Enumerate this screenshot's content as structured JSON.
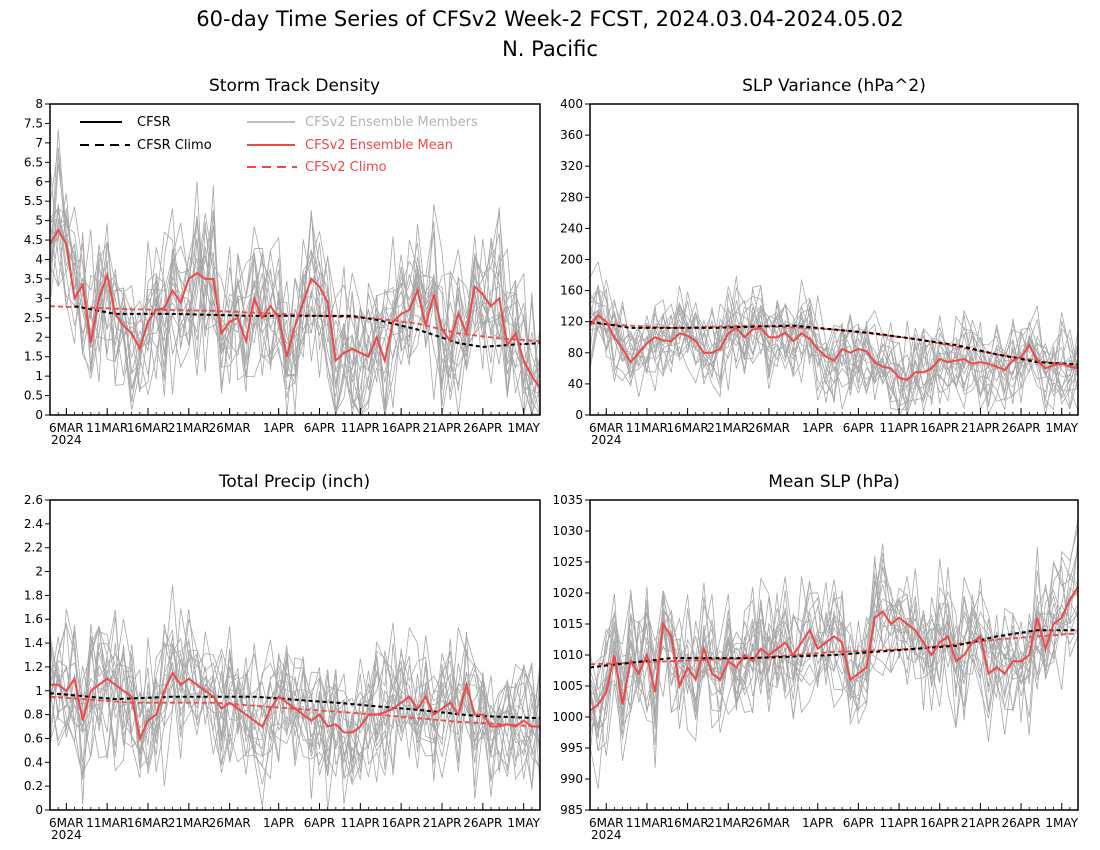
{
  "title": "60-day Time Series of CFSv2 Week-2 FCST, 2024.03.04-2024.05.02",
  "subtitle": "N. Pacific",
  "x_tick_labels": [
    "6MAR",
    "11MAR",
    "16MAR",
    "21MAR",
    "26MAR",
    "1APR",
    "6APR",
    "11APR",
    "16APR",
    "21APR",
    "26APR",
    "1MAY"
  ],
  "x_year_label": "2024",
  "legend": {
    "cfsr": "CFSR",
    "cfsr_climo": "CFSR Climo",
    "members": "CFSv2 Ensemble Members",
    "ens_mean": "CFSv2 Ensemble Mean",
    "cfsv2_climo": "CFSv2 Climo"
  },
  "colors": {
    "cfsr": "#000000",
    "members": "#a8a8a8",
    "ens_mean": "#f04848",
    "cfsv2_climo": "#f04848"
  },
  "chart_data": [
    {
      "type": "line",
      "title": "Storm Track Density",
      "x_range": [
        "2024-03-04",
        "2024-05-02"
      ],
      "ylim": [
        0,
        8
      ],
      "y_ticks": [
        "0",
        "0.5",
        "1",
        "1.5",
        "2",
        "2.5",
        "3",
        "3.5",
        "4",
        "4.5",
        "5",
        "5.5",
        "6",
        "6.5",
        "7",
        "7.5",
        "8"
      ],
      "ensemble_mean": [
        4.4,
        4.75,
        4.4,
        3.0,
        3.35,
        1.85,
        3.0,
        3.6,
        2.6,
        2.3,
        2.1,
        1.7,
        2.4,
        2.7,
        2.75,
        3.2,
        2.9,
        3.5,
        3.65,
        3.5,
        3.5,
        2.1,
        2.4,
        2.5,
        1.9,
        3.0,
        2.5,
        2.8,
        2.5,
        1.5,
        2.3,
        2.9,
        3.5,
        3.3,
        2.9,
        1.4,
        1.6,
        1.7,
        1.6,
        1.5,
        2.0,
        1.4,
        2.4,
        2.6,
        2.7,
        3.2,
        2.3,
        3.1,
        2.2,
        1.9,
        2.6,
        2.1,
        3.3,
        3.1,
        2.8,
        3.0,
        1.8,
        2.1,
        1.4,
        1.0,
        0.7
      ],
      "ensemble_mean_climo": [
        [
          0,
          2.8
        ],
        [
          10,
          2.72
        ],
        [
          20,
          2.68
        ],
        [
          30,
          2.58
        ],
        [
          40,
          2.48
        ],
        [
          45,
          2.35
        ],
        [
          50,
          2.1
        ],
        [
          55,
          1.97
        ],
        [
          60,
          1.9
        ]
      ],
      "cfsr_climo": [
        [
          3,
          2.8
        ],
        [
          8,
          2.6
        ],
        [
          15,
          2.6
        ],
        [
          25,
          2.55
        ],
        [
          30,
          2.55
        ],
        [
          37,
          2.55
        ],
        [
          40,
          2.45
        ],
        [
          45,
          2.2
        ],
        [
          50,
          1.85
        ],
        [
          53,
          1.75
        ],
        [
          56,
          1.8
        ],
        [
          60,
          1.85
        ]
      ],
      "member_spread": 1.0,
      "member_count": 18
    },
    {
      "type": "line",
      "title": "SLP Variance (hPa^2)",
      "x_range": [
        "2024-03-04",
        "2024-05-02"
      ],
      "ylim": [
        0,
        400
      ],
      "y_ticks": [
        "0",
        "40",
        "80",
        "120",
        "160",
        "200",
        "240",
        "280",
        "320",
        "360",
        "400"
      ],
      "ensemble_mean": [
        115,
        128,
        120,
        100,
        85,
        68,
        80,
        92,
        100,
        96,
        95,
        105,
        102,
        95,
        80,
        80,
        85,
        105,
        112,
        100,
        110,
        112,
        100,
        100,
        106,
        95,
        105,
        98,
        85,
        75,
        70,
        85,
        80,
        85,
        82,
        68,
        62,
        60,
        48,
        45,
        55,
        55,
        60,
        72,
        68,
        70,
        72,
        66,
        68,
        66,
        62,
        58,
        70,
        75,
        90,
        70,
        60,
        64,
        66,
        62,
        60
      ],
      "ensemble_mean_climo": [
        [
          0,
          118
        ],
        [
          10,
          112
        ],
        [
          20,
          115
        ],
        [
          30,
          110
        ],
        [
          40,
          98
        ],
        [
          50,
          78
        ],
        [
          60,
          62
        ]
      ],
      "cfsr_climo": [
        [
          0,
          120
        ],
        [
          5,
          112
        ],
        [
          15,
          112
        ],
        [
          25,
          115
        ],
        [
          35,
          105
        ],
        [
          45,
          90
        ],
        [
          50,
          78
        ],
        [
          55,
          68
        ],
        [
          60,
          65
        ]
      ],
      "member_spread": 28,
      "member_count": 18
    },
    {
      "type": "line",
      "title": "Total Precip (inch)",
      "x_range": [
        "2024-03-04",
        "2024-05-02"
      ],
      "ylim": [
        0,
        2.6
      ],
      "y_ticks": [
        "0",
        "0.2",
        "0.4",
        "0.6",
        "0.8",
        "1",
        "1.2",
        "1.4",
        "1.6",
        "1.8",
        "2",
        "2.2",
        "2.4",
        "2.6"
      ],
      "ensemble_mean": [
        1.05,
        1.05,
        1.0,
        1.1,
        0.75,
        1.0,
        1.05,
        1.1,
        1.05,
        1.0,
        0.95,
        0.6,
        0.75,
        0.8,
        1.0,
        1.15,
        1.05,
        1.1,
        1.05,
        1.0,
        0.95,
        0.85,
        0.9,
        0.85,
        0.8,
        0.75,
        0.7,
        0.85,
        0.95,
        0.9,
        0.85,
        0.8,
        0.75,
        0.8,
        0.7,
        0.72,
        0.65,
        0.65,
        0.7,
        0.8,
        0.8,
        0.82,
        0.85,
        0.9,
        0.95,
        0.85,
        0.95,
        0.8,
        0.85,
        0.9,
        0.8,
        1.05,
        0.8,
        0.8,
        0.7,
        0.7,
        0.72,
        0.7,
        0.75,
        0.7,
        0.7
      ],
      "ensemble_mean_climo": [
        [
          0,
          0.95
        ],
        [
          10,
          0.9
        ],
        [
          20,
          0.9
        ],
        [
          30,
          0.85
        ],
        [
          40,
          0.8
        ],
        [
          50,
          0.74
        ],
        [
          60,
          0.7
        ]
      ],
      "cfsr_climo": [
        [
          0,
          0.98
        ],
        [
          8,
          0.93
        ],
        [
          15,
          0.95
        ],
        [
          25,
          0.95
        ],
        [
          35,
          0.9
        ],
        [
          45,
          0.84
        ],
        [
          52,
          0.79
        ],
        [
          60,
          0.77
        ]
      ],
      "member_spread": 0.28,
      "member_count": 18
    },
    {
      "type": "line",
      "title": "Mean SLP (hPa)",
      "x_range": [
        "2024-03-04",
        "2024-05-02"
      ],
      "ylim": [
        985,
        1035
      ],
      "y_ticks": [
        "985",
        "990",
        "995",
        "1000",
        "1005",
        "1010",
        "1015",
        "1020",
        "1025",
        "1030",
        "1035"
      ],
      "ensemble_mean": [
        1001,
        1002,
        1004,
        1010,
        1002,
        1009,
        1007,
        1010,
        1004,
        1015,
        1013,
        1005,
        1008,
        1006,
        1011,
        1007,
        1006,
        1009,
        1008,
        1010,
        1009,
        1011,
        1010,
        1011,
        1012,
        1010,
        1012,
        1014,
        1011,
        1012,
        1013,
        1012,
        1006,
        1007,
        1008,
        1016,
        1017,
        1015,
        1016,
        1015,
        1014,
        1012,
        1010,
        1012,
        1013,
        1009,
        1010,
        1012,
        1013,
        1007,
        1008,
        1007,
        1009,
        1009,
        1010,
        1016,
        1011,
        1015,
        1016,
        1019,
        1021
      ],
      "ensemble_mean_climo": [
        [
          0,
          1008.5
        ],
        [
          10,
          1009
        ],
        [
          20,
          1009.5
        ],
        [
          30,
          1010.5
        ],
        [
          40,
          1011
        ],
        [
          50,
          1012.5
        ],
        [
          60,
          1013.5
        ]
      ],
      "cfsr_climo": [
        [
          0,
          1008
        ],
        [
          10,
          1009.5
        ],
        [
          20,
          1009.5
        ],
        [
          30,
          1010
        ],
        [
          40,
          1011
        ],
        [
          45,
          1011.5
        ],
        [
          50,
          1013
        ],
        [
          55,
          1014
        ],
        [
          60,
          1014
        ]
      ],
      "member_spread": 5,
      "member_count": 18
    }
  ]
}
